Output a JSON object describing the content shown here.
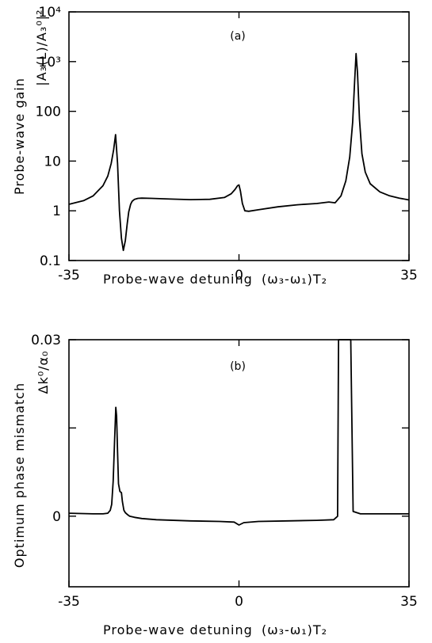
{
  "chart_data": [
    {
      "type": "line",
      "panel_label": "(a)",
      "xlabel": "Probe-wave detuning",
      "xlabel_math": "(ω₃-ω₁)T₂",
      "ylabel": "Probe-wave gain",
      "ylabel_math": "|A₃(L)/A₃⁰|²",
      "xlim": [
        -35,
        35
      ],
      "ylim": [
        0.1,
        10000
      ],
      "yscale": "log",
      "xticks": [
        -35,
        0,
        35
      ],
      "xtick_labels": [
        "-35",
        "0",
        "35"
      ],
      "yticks": [
        0.1,
        1,
        10,
        100,
        1000,
        10000
      ],
      "ytick_labels": [
        "0.1",
        "1",
        "10",
        "100",
        "10³",
        "10⁴"
      ],
      "grid": false,
      "series": [
        {
          "x": [
            -35,
            -32,
            -30,
            -28,
            -27,
            -26.3,
            -25.8,
            -25.4,
            -25.0,
            -24.6,
            -24.2,
            -23.8,
            -23.4,
            -23.0,
            -22.7,
            -22.3,
            -22.0,
            -21.5,
            -20.8,
            -20,
            -18,
            -14,
            -10,
            -6,
            -3,
            -1.6,
            -0.8,
            -0.3,
            0,
            0.3,
            0.7,
            1.2,
            2,
            4,
            8,
            12,
            16,
            18.5,
            19.8,
            21,
            22,
            22.8,
            23.4,
            23.8,
            24.1,
            24.4,
            24.8,
            25.3,
            26,
            27,
            29,
            31,
            33,
            35
          ],
          "y": [
            1.35,
            1.6,
            2.0,
            3.2,
            5.0,
            9.0,
            17,
            34,
            9,
            1.0,
            0.28,
            0.16,
            0.25,
            0.55,
            0.95,
            1.35,
            1.55,
            1.7,
            1.78,
            1.8,
            1.78,
            1.72,
            1.68,
            1.7,
            1.85,
            2.2,
            2.7,
            3.2,
            3.3,
            2.5,
            1.4,
            1.0,
            0.98,
            1.05,
            1.2,
            1.32,
            1.4,
            1.5,
            1.45,
            2.0,
            4.0,
            12,
            60,
            400,
            1450,
            600,
            70,
            14,
            6.0,
            3.5,
            2.4,
            2.0,
            1.8,
            1.65
          ]
        }
      ]
    },
    {
      "type": "line",
      "panel_label": "(b)",
      "xlabel": "Probe-wave detuning",
      "xlabel_math": "(ω₃-ω₁)T₂",
      "ylabel": "Optimum phase mismatch",
      "ylabel_math": "Δk⁰/α₀",
      "xlim": [
        -35,
        35
      ],
      "ylim": [
        -0.012,
        0.03
      ],
      "xticks": [
        -35,
        0,
        35
      ],
      "xtick_labels": [
        "-35",
        "0",
        "35"
      ],
      "yticks": [
        0,
        0.03
      ],
      "ytick_labels": [
        "0",
        "0.03"
      ],
      "grid": false,
      "series": [
        {
          "x": [
            -35,
            -30,
            -28,
            -27,
            -26.5,
            -26.2,
            -25.9,
            -25.6,
            -25.35,
            -25.2,
            -25.0,
            -24.8,
            -24.5,
            -24.2,
            -24.0,
            -23.7,
            -23.4,
            -23.0,
            -22.5,
            -21.5,
            -20,
            -17,
            -10,
            -4,
            -1,
            0,
            1,
            4,
            10,
            16,
            19.5,
            20.3,
            20.5,
            21.0,
            22.8,
            23.0,
            23.5,
            25,
            30,
            35
          ],
          "y": [
            0.0005,
            0.0004,
            0.0004,
            0.0005,
            0.001,
            0.002,
            0.006,
            0.013,
            0.0185,
            0.017,
            0.011,
            0.0055,
            0.0042,
            0.004,
            0.0025,
            0.001,
            0.0006,
            0.0003,
            0.0,
            -0.0002,
            -0.0004,
            -0.0006,
            -0.0008,
            -0.0009,
            -0.001,
            -0.0015,
            -0.0011,
            -0.0009,
            -0.0008,
            -0.0007,
            -0.0006,
            0.0,
            0.031,
            0.031,
            0.031,
            0.031,
            0.0008,
            0.0004,
            0.0004,
            0.0004
          ]
        }
      ]
    }
  ]
}
